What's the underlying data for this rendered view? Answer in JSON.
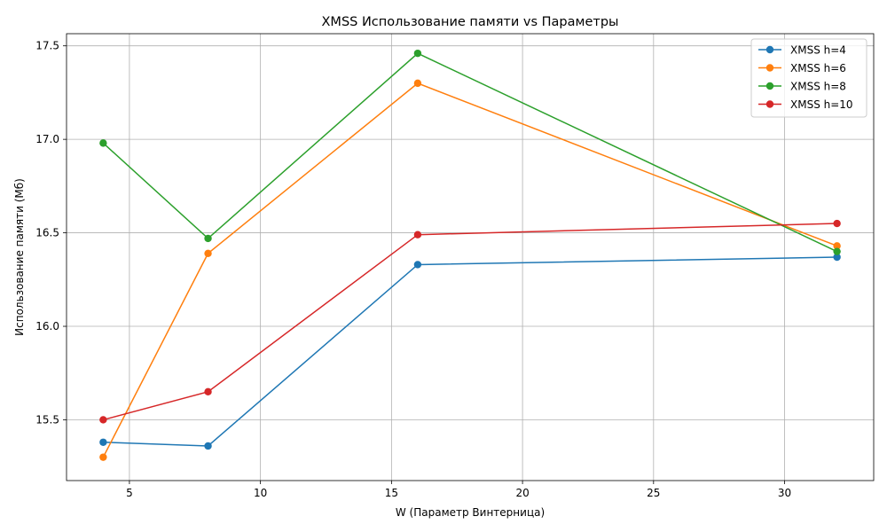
{
  "chart_data": {
    "type": "line",
    "title": "XMSS Использование памяти vs Параметры",
    "xlabel": "W (Параметр Винтерница)",
    "ylabel": "Использование памяти (Мб)",
    "xlim": [
      2.6,
      33.4
    ],
    "ylim": [
      15.175,
      17.565
    ],
    "xticks": [
      5,
      10,
      15,
      20,
      25,
      30
    ],
    "yticks": [
      15.5,
      16.0,
      16.5,
      17.0,
      17.5
    ],
    "xtick_labels": [
      "5",
      "10",
      "15",
      "20",
      "25",
      "30"
    ],
    "ytick_labels": [
      "15.5",
      "16.0",
      "16.5",
      "17.0",
      "17.5"
    ],
    "grid": true,
    "legend_position": "top-right",
    "x": [
      4,
      8,
      16,
      32
    ],
    "series": [
      {
        "name": "XMSS h=4",
        "color": "#1f77b4",
        "values": [
          15.38,
          15.36,
          16.33,
          16.37
        ]
      },
      {
        "name": "XMSS h=6",
        "color": "#ff7f0e",
        "values": [
          15.3,
          16.39,
          17.3,
          16.43
        ]
      },
      {
        "name": "XMSS h=8",
        "color": "#2ca02c",
        "values": [
          16.98,
          16.47,
          17.46,
          16.4
        ]
      },
      {
        "name": "XMSS h=10",
        "color": "#d62728",
        "values": [
          15.5,
          15.65,
          16.49,
          16.55
        ]
      }
    ]
  }
}
